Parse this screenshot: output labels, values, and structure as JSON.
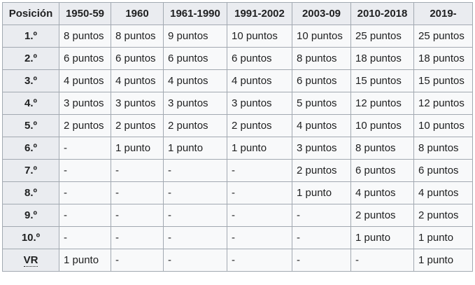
{
  "table": {
    "headers": [
      "Posición",
      "1950-59",
      "1960",
      "1961-1990",
      "1991-2002",
      "2003-09",
      "2010-2018",
      "2019-"
    ],
    "rows": [
      {
        "pos": "1.º",
        "cells": [
          "8 puntos",
          "8 puntos",
          "9 puntos",
          "10 puntos",
          "10 puntos",
          "25 puntos",
          "25 puntos"
        ]
      },
      {
        "pos": "2.º",
        "cells": [
          "6 puntos",
          "6 puntos",
          "6 puntos",
          "6 puntos",
          "8 puntos",
          "18 puntos",
          "18 puntos"
        ]
      },
      {
        "pos": "3.º",
        "cells": [
          "4 puntos",
          "4 puntos",
          "4 puntos",
          "4 puntos",
          "6 puntos",
          "15 puntos",
          "15 puntos"
        ]
      },
      {
        "pos": "4.º",
        "cells": [
          "3 puntos",
          "3 puntos",
          "3 puntos",
          "3 puntos",
          "5 puntos",
          "12 puntos",
          "12 puntos"
        ]
      },
      {
        "pos": "5.º",
        "cells": [
          "2 puntos",
          "2 puntos",
          "2 puntos",
          "2 puntos",
          "4 puntos",
          "10 puntos",
          "10 puntos"
        ]
      },
      {
        "pos": "6.º",
        "cells": [
          "-",
          "1 punto",
          "1 punto",
          "1 punto",
          "3 puntos",
          "8 puntos",
          "8 puntos"
        ]
      },
      {
        "pos": "7.º",
        "cells": [
          "-",
          "-",
          "-",
          "-",
          "2 puntos",
          "6 puntos",
          "6 puntos"
        ]
      },
      {
        "pos": "8.º",
        "cells": [
          "-",
          "-",
          "-",
          "-",
          "1 punto",
          "4 puntos",
          "4 puntos"
        ]
      },
      {
        "pos": "9.º",
        "cells": [
          "-",
          "-",
          "-",
          "-",
          "-",
          "2 puntos",
          "2 puntos"
        ]
      },
      {
        "pos": "10.º",
        "cells": [
          "-",
          "-",
          "-",
          "-",
          "-",
          "1 punto",
          "1 punto"
        ]
      },
      {
        "pos": "VR",
        "cells": [
          "1 punto",
          "-",
          "-",
          "-",
          "-",
          "-",
          "1 punto"
        ]
      }
    ]
  }
}
